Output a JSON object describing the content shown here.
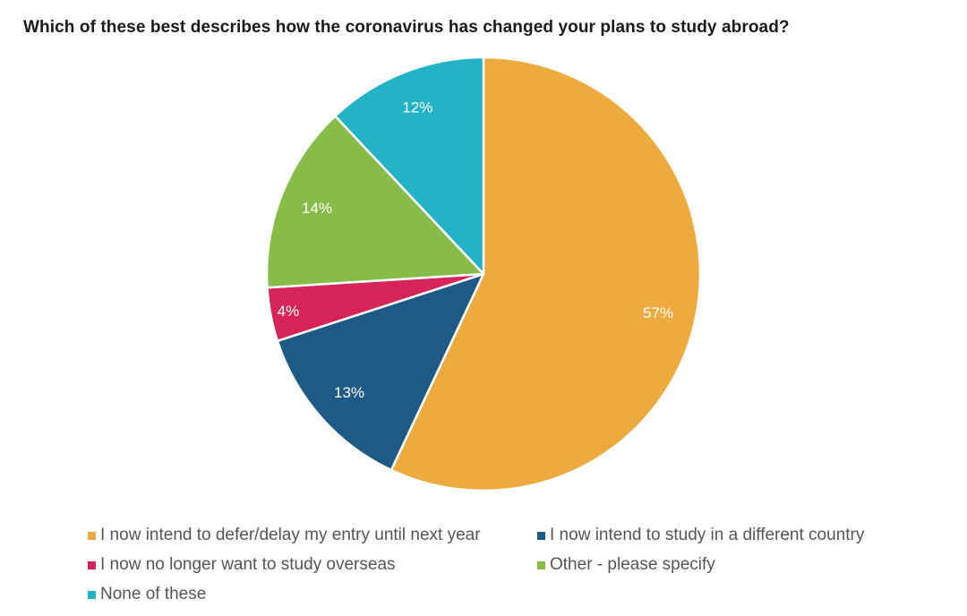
{
  "chart_data": {
    "type": "pie",
    "title": "Which of these best describes how the coronavirus has changed your plans to study abroad?",
    "slices": [
      {
        "label": "I now intend to defer/delay my entry until next year",
        "value": 57,
        "display": "57%",
        "color": "#EDAB3F"
      },
      {
        "label": "I now intend to study in a different country",
        "value": 13,
        "display": "13%",
        "color": "#1F5A87"
      },
      {
        "label": "I now no longer want to study overseas",
        "value": 4,
        "display": "4%",
        "color": "#D6245A"
      },
      {
        "label": "Other - please specify",
        "value": 14,
        "display": "14%",
        "color": "#86BC47"
      },
      {
        "label": "None of these",
        "value": 12,
        "display": "12%",
        "color": "#23B3C7"
      }
    ],
    "start": "12 o'clock",
    "direction": "clockwise",
    "legend_position": "bottom"
  }
}
